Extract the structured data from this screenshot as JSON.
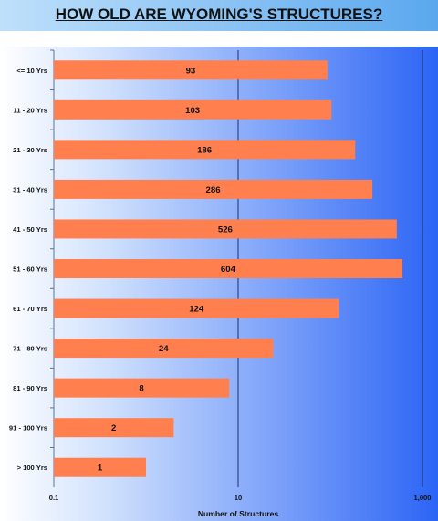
{
  "chart_data": {
    "type": "bar",
    "orientation": "horizontal",
    "title": "HOW OLD ARE WYOMING'S STRUCTURES?",
    "xlabel": "Number of Structures",
    "ylabel": "",
    "x_scale": "log",
    "xlim": [
      0.1,
      1000
    ],
    "x_ticks": [
      0.1,
      10,
      1000
    ],
    "x_tick_labels": [
      "0.1",
      "10",
      "1,000"
    ],
    "grid": "vertical lines at major ticks",
    "categories": [
      "<= 10 Yrs",
      "11 - 20 Yrs",
      "21 - 30 Yrs",
      "31 - 40 Yrs",
      "41 - 50 Yrs",
      "51 - 60 Yrs",
      "61 - 70 Yrs",
      "71 - 80 Yrs",
      "81 - 90 Yrs",
      "91 - 100 Yrs",
      "> 100 Yrs"
    ],
    "values": [
      93,
      103,
      186,
      286,
      526,
      604,
      124,
      24,
      8,
      2,
      1
    ],
    "bar_color": "#ff7f4f",
    "plot_background": [
      "#ffffff",
      "#2b64f5"
    ]
  }
}
